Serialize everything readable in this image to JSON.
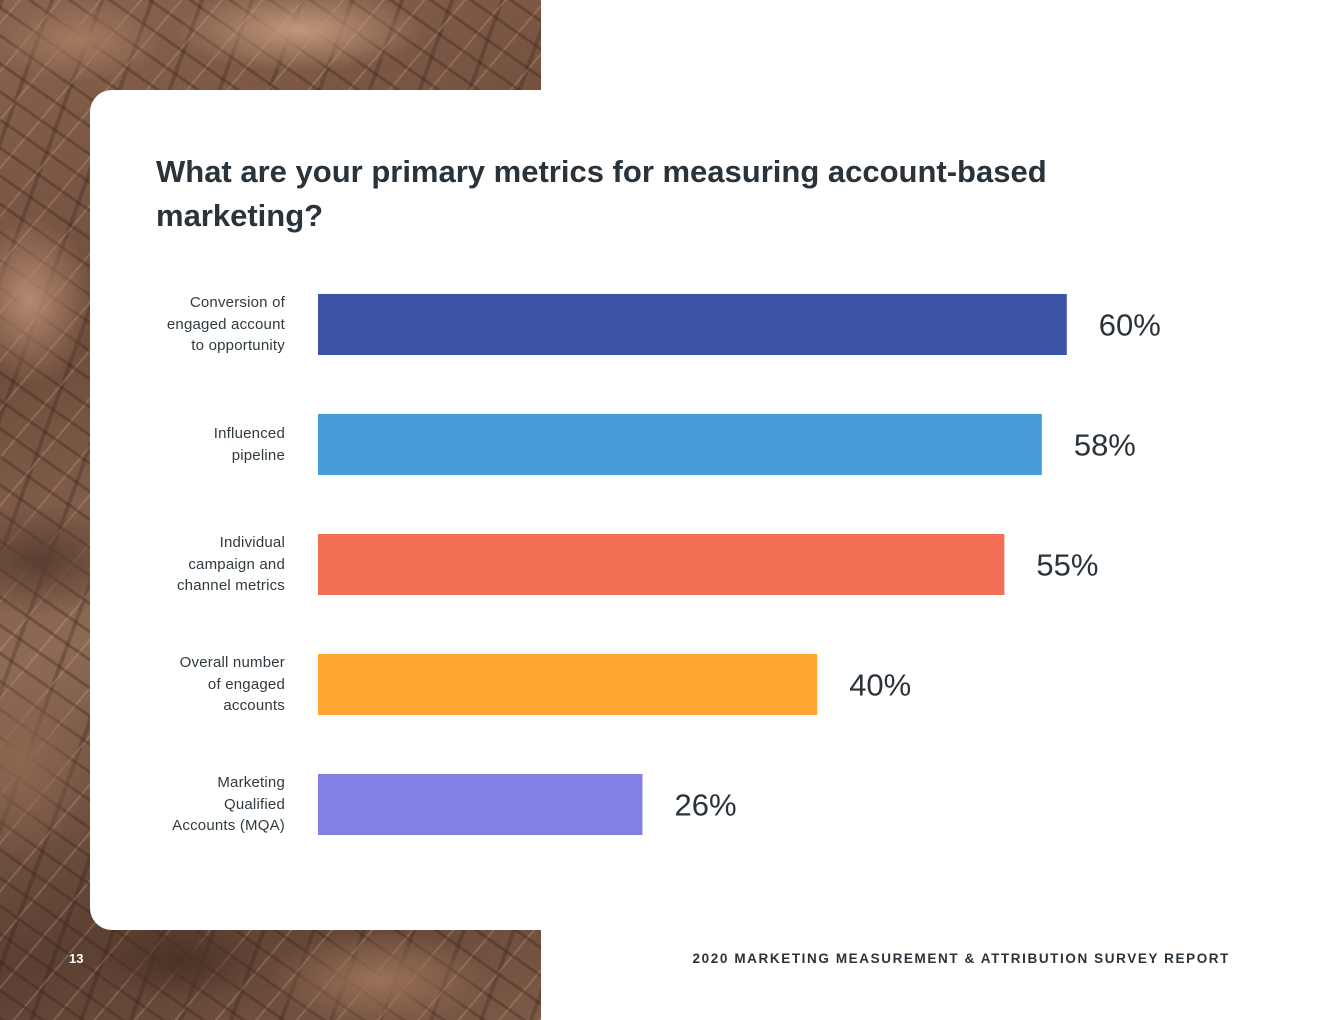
{
  "chart_data": {
    "type": "bar",
    "orientation": "horizontal",
    "title": "What are your primary metrics for measuring account-based marketing?",
    "categories": [
      "Conversion of engaged account to opportunity",
      "Influenced pipeline",
      "Individual campaign and channel metrics",
      "Overall number of engaged accounts",
      "Marketing Qualified Accounts (MQA)"
    ],
    "label_lines": [
      [
        "Conversion of",
        "engaged account",
        "to opportunity"
      ],
      [
        "Influenced",
        "pipeline"
      ],
      [
        "Individual",
        "campaign and",
        "channel metrics"
      ],
      [
        "Overall number",
        "of engaged",
        "accounts"
      ],
      [
        "Marketing",
        "Qualified",
        "Accounts (MQA)"
      ]
    ],
    "values": [
      60,
      58,
      55,
      40,
      26
    ],
    "value_labels": [
      "60%",
      "58%",
      "55%",
      "40%",
      "26%"
    ],
    "colors": [
      "#3a53a4",
      "#459cd8",
      "#f26f55",
      "#ffa531",
      "#8380e3"
    ],
    "xlim": [
      0,
      100
    ],
    "unit": "%",
    "grid": false,
    "legend": "none"
  },
  "footer": {
    "page_number": "13",
    "report_title": "2020 MARKETING MEASUREMENT & ATTRIBUTION SURVEY REPORT"
  },
  "colors": {
    "text_dark": "#2a333a",
    "card": "#ffffff"
  }
}
